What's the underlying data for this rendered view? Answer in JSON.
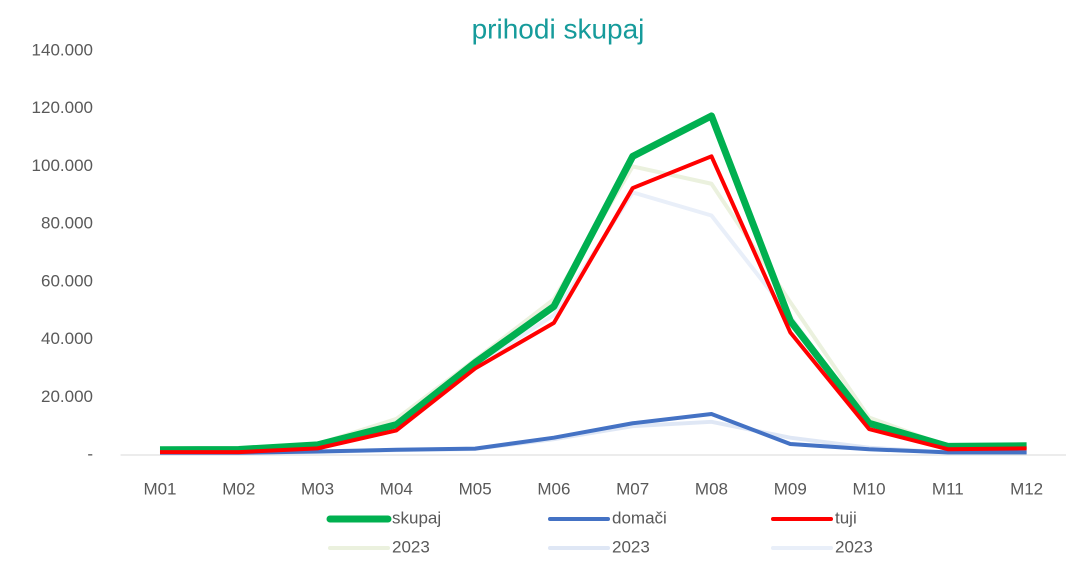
{
  "chart_data": {
    "type": "line",
    "title": "prihodi skupaj",
    "categories": [
      "M01",
      "M02",
      "M03",
      "M04",
      "M05",
      "M06",
      "M07",
      "M08",
      "M09",
      "M10",
      "M11",
      "M12"
    ],
    "series": [
      {
        "name": "skupaj",
        "color": "#00b050",
        "values": [
          1800,
          1900,
          3500,
          10500,
          32000,
          51500,
          103500,
          117500,
          46500,
          11000,
          3000,
          3200
        ]
      },
      {
        "name": "domači",
        "color": "#4472c4",
        "values": [
          800,
          800,
          1200,
          1800,
          2200,
          6000,
          11000,
          14200,
          3800,
          2000,
          900,
          900
        ]
      },
      {
        "name": "tuji",
        "color": "#ff0000",
        "values": [
          1000,
          1000,
          2300,
          8500,
          30000,
          45800,
          92500,
          103500,
          42500,
          9000,
          2000,
          2300
        ]
      },
      {
        "name": "2023",
        "color": "#ebf1de",
        "values": [
          1700,
          1800,
          3800,
          12500,
          33000,
          54000,
          100000,
          94000,
          53000,
          13000,
          3000,
          3000
        ]
      },
      {
        "name": "2023",
        "color": "#dfe7f5",
        "values": [
          700,
          700,
          1100,
          1700,
          2100,
          5500,
          10000,
          11500,
          6000,
          2500,
          900,
          900
        ]
      },
      {
        "name": "2023",
        "color": "#e9eff9",
        "values": [
          1000,
          1100,
          2700,
          10800,
          30900,
          48500,
          91000,
          83000,
          48000,
          10500,
          2100,
          2100
        ]
      }
    ],
    "ylim": [
      0,
      140000
    ],
    "yticks": [
      {
        "value": 0,
        "label": "-"
      },
      {
        "value": 20000,
        "label": "20.000"
      },
      {
        "value": 40000,
        "label": "40.000"
      },
      {
        "value": 60000,
        "label": "60.000"
      },
      {
        "value": 80000,
        "label": "80.000"
      },
      {
        "value": 100000,
        "label": "100.000"
      },
      {
        "value": 120000,
        "label": "120.000"
      },
      {
        "value": 140000,
        "label": "140.000"
      }
    ]
  }
}
